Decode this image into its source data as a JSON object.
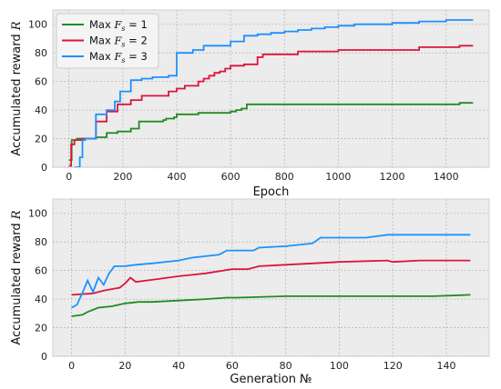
{
  "chart_data": [
    {
      "type": "line",
      "step": true,
      "xlabel": "Epoch",
      "ylabel": "Accumulated reward",
      "ylabel_var": "R",
      "xlim": [
        -60,
        1560
      ],
      "ylim": [
        0,
        110
      ],
      "xticks": [
        0,
        200,
        400,
        600,
        800,
        1000,
        1200,
        1400
      ],
      "yticks": [
        0,
        20,
        40,
        60,
        80,
        100
      ],
      "grid": true,
      "legend": {
        "position": "top-left",
        "entries": [
          {
            "prefix": "Max ",
            "var": "F",
            "sub": "s",
            "suffix": " = 1",
            "color": "#228b22"
          },
          {
            "prefix": "Max ",
            "var": "F",
            "sub": "s",
            "suffix": " = 2",
            "color": "#dc143c"
          },
          {
            "prefix": "Max ",
            "var": "F",
            "sub": "s",
            "suffix": " = 3",
            "color": "#1e90ff"
          }
        ]
      },
      "series": [
        {
          "color": "#228b22",
          "points": [
            [
              0,
              5
            ],
            [
              10,
              19
            ],
            [
              30,
              20
            ],
            [
              80,
              20
            ],
            [
              100,
              21
            ],
            [
              140,
              24
            ],
            [
              180,
              25
            ],
            [
              230,
              27
            ],
            [
              260,
              32
            ],
            [
              340,
              32
            ],
            [
              350,
              33
            ],
            [
              360,
              34
            ],
            [
              390,
              35
            ],
            [
              400,
              37
            ],
            [
              430,
              37
            ],
            [
              480,
              38
            ],
            [
              550,
              38
            ],
            [
              600,
              39
            ],
            [
              620,
              40
            ],
            [
              640,
              41
            ],
            [
              660,
              44
            ],
            [
              700,
              44
            ],
            [
              1000,
              44
            ],
            [
              1060,
              44
            ],
            [
              1200,
              44
            ],
            [
              1450,
              45
            ],
            [
              1500,
              45
            ]
          ]
        },
        {
          "color": "#dc143c",
          "points": [
            [
              0,
              1
            ],
            [
              8,
              16
            ],
            [
              20,
              19
            ],
            [
              50,
              20
            ],
            [
              80,
              20
            ],
            [
              100,
              32
            ],
            [
              140,
              39
            ],
            [
              180,
              44
            ],
            [
              230,
              47
            ],
            [
              270,
              50
            ],
            [
              370,
              53
            ],
            [
              400,
              55
            ],
            [
              430,
              57
            ],
            [
              480,
              60
            ],
            [
              500,
              62
            ],
            [
              520,
              64
            ],
            [
              540,
              66
            ],
            [
              560,
              67
            ],
            [
              580,
              69
            ],
            [
              600,
              71
            ],
            [
              650,
              72
            ],
            [
              700,
              77
            ],
            [
              720,
              79
            ],
            [
              800,
              79
            ],
            [
              850,
              81
            ],
            [
              1000,
              82
            ],
            [
              1060,
              82
            ],
            [
              1300,
              84
            ],
            [
              1450,
              85
            ],
            [
              1500,
              85
            ]
          ]
        },
        {
          "color": "#1e90ff",
          "points": [
            [
              20,
              0
            ],
            [
              40,
              7
            ],
            [
              50,
              19
            ],
            [
              60,
              20
            ],
            [
              100,
              37
            ],
            [
              140,
              40
            ],
            [
              170,
              46
            ],
            [
              190,
              53
            ],
            [
              230,
              61
            ],
            [
              270,
              62
            ],
            [
              310,
              63
            ],
            [
              370,
              64
            ],
            [
              400,
              80
            ],
            [
              430,
              80
            ],
            [
              460,
              82
            ],
            [
              500,
              85
            ],
            [
              550,
              85
            ],
            [
              600,
              88
            ],
            [
              650,
              92
            ],
            [
              700,
              93
            ],
            [
              750,
              94
            ],
            [
              800,
              95
            ],
            [
              850,
              96
            ],
            [
              900,
              97
            ],
            [
              950,
              98
            ],
            [
              1000,
              99
            ],
            [
              1060,
              100
            ],
            [
              1200,
              101
            ],
            [
              1300,
              102
            ],
            [
              1400,
              103
            ],
            [
              1500,
              103
            ]
          ]
        }
      ]
    },
    {
      "type": "line",
      "step": false,
      "xlabel": "Generation №",
      "ylabel": "Accumulated reward",
      "ylabel_var": "R",
      "xlim": [
        -7,
        156
      ],
      "ylim": [
        0,
        110
      ],
      "xticks": [
        0,
        20,
        40,
        60,
        80,
        100,
        120,
        140
      ],
      "yticks": [
        0,
        20,
        40,
        60,
        80,
        100
      ],
      "grid": true,
      "series": [
        {
          "color": "#228b22",
          "points": [
            [
              0,
              28
            ],
            [
              4,
              29
            ],
            [
              6,
              31
            ],
            [
              10,
              34
            ],
            [
              15,
              35
            ],
            [
              20,
              37
            ],
            [
              25,
              38
            ],
            [
              30,
              38
            ],
            [
              40,
              39
            ],
            [
              50,
              40
            ],
            [
              58,
              41
            ],
            [
              62,
              41
            ],
            [
              80,
              42
            ],
            [
              100,
              42
            ],
            [
              120,
              42
            ],
            [
              135,
              42
            ],
            [
              149,
              43
            ]
          ]
        },
        {
          "color": "#dc143c",
          "points": [
            [
              0,
              43
            ],
            [
              8,
              44
            ],
            [
              10,
              45
            ],
            [
              12,
              46
            ],
            [
              18,
              48
            ],
            [
              20,
              51
            ],
            [
              22,
              55
            ],
            [
              24,
              52
            ],
            [
              28,
              53
            ],
            [
              32,
              54
            ],
            [
              40,
              56
            ],
            [
              45,
              57
            ],
            [
              50,
              58
            ],
            [
              60,
              61
            ],
            [
              66,
              61
            ],
            [
              70,
              63
            ],
            [
              80,
              64
            ],
            [
              90,
              65
            ],
            [
              100,
              66
            ],
            [
              118,
              67
            ],
            [
              120,
              66
            ],
            [
              130,
              67
            ],
            [
              149,
              67
            ]
          ]
        },
        {
          "color": "#1e90ff",
          "points": [
            [
              0,
              34
            ],
            [
              2,
              36
            ],
            [
              4,
              44
            ],
            [
              6,
              53
            ],
            [
              8,
              45
            ],
            [
              10,
              55
            ],
            [
              12,
              50
            ],
            [
              14,
              58
            ],
            [
              16,
              63
            ],
            [
              20,
              63
            ],
            [
              24,
              64
            ],
            [
              30,
              65
            ],
            [
              40,
              67
            ],
            [
              45,
              69
            ],
            [
              55,
              71
            ],
            [
              58,
              74
            ],
            [
              68,
              74
            ],
            [
              70,
              76
            ],
            [
              80,
              77
            ],
            [
              90,
              79
            ],
            [
              93,
              83
            ],
            [
              100,
              83
            ],
            [
              110,
              83
            ],
            [
              118,
              85
            ],
            [
              130,
              85
            ],
            [
              149,
              85
            ]
          ]
        }
      ]
    }
  ]
}
